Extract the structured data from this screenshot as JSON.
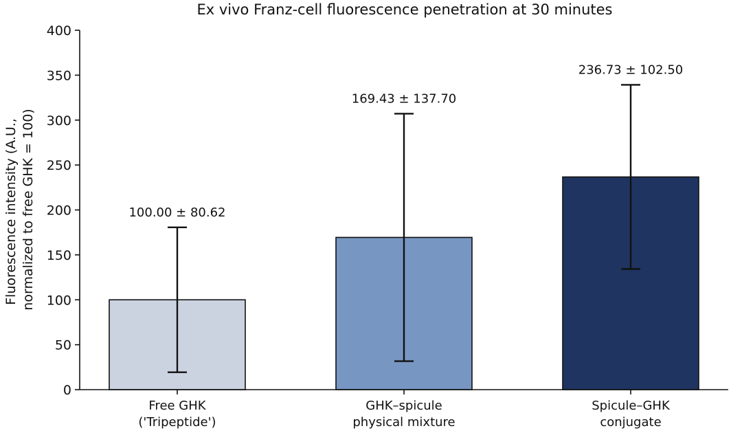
{
  "chart_data": {
    "type": "bar",
    "title": "Ex vivo Franz-cell fluorescence penetration at 30 minutes",
    "ylabel": [
      "Fluorescence intensity (A.U.,",
      "normalized to free GHK = 100)"
    ],
    "xlabel": "",
    "ylim": [
      0,
      400
    ],
    "yticks": [
      0,
      50,
      100,
      150,
      200,
      250,
      300,
      350,
      400
    ],
    "categories": [
      [
        "Free GHK",
        "('Tripeptide')"
      ],
      [
        "GHK–spicule",
        "physical mixture"
      ],
      [
        "Spicule–GHK",
        "conjugate"
      ]
    ],
    "values": [
      100.0,
      169.43,
      236.73
    ],
    "errors": [
      80.62,
      137.7,
      102.5
    ],
    "value_labels": [
      "100.00 ± 80.62",
      "169.43 ± 137.70",
      "236.73 ± 102.50"
    ],
    "colors": [
      "#cbd3e1",
      "#7896c2",
      "#1f3461"
    ],
    "grid": false,
    "legend": "none"
  }
}
